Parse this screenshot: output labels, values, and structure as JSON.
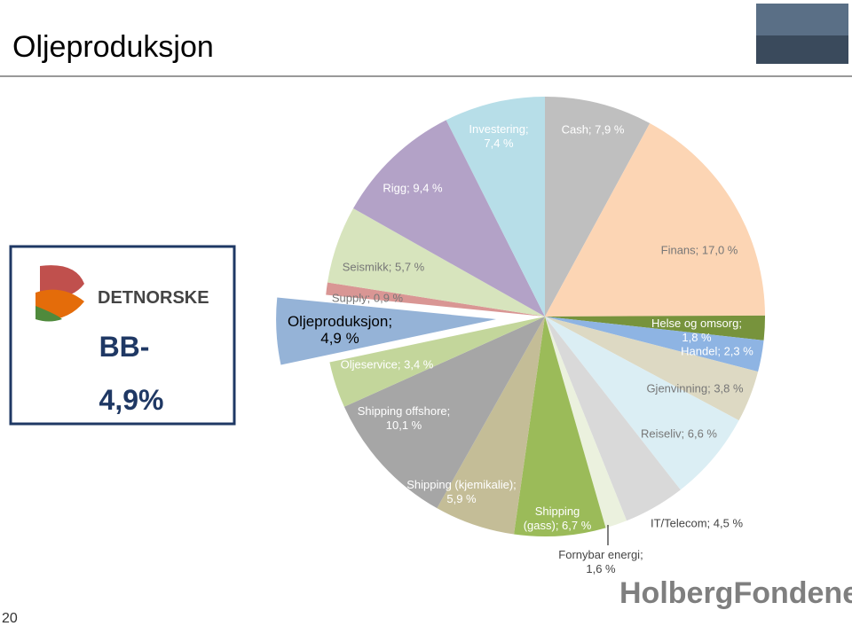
{
  "title": "Oljeproduksjon",
  "badge": {
    "logo_text": "DETNORSKE",
    "rating": "BB-",
    "share": "4,9%"
  },
  "footer_logo": "HolbergFondene",
  "page_number": "20",
  "chart_data": {
    "type": "pie",
    "values": [
      7.9,
      17.0,
      1.8,
      2.3,
      3.8,
      6.6,
      4.5,
      1.6,
      6.7,
      5.9,
      10.1,
      3.4,
      4.9,
      0.9,
      5.7,
      9.4,
      7.4
    ],
    "value_labels": [
      "Cash; 7,9 %",
      "Finans; 17,0 %",
      "Helse og omsorg; 1,8 %",
      "Handel; 2,3 %",
      "Gjenvinning; 3,8 %",
      "Reiseliv; 6,6 %",
      "IT/Telecom; 4,5 %",
      "Fornybar energi; 1,6 %",
      "Shipping (gass); 6,7 %",
      "Shipping (kjemikalie); 5,9 %",
      "Shipping offshore; 10,1 %",
      "Oljeservice; 3,4 %",
      "Oljeproduksjon; 4,9 %",
      "Supply; 0,9 %",
      "Seismikk; 5,7 %",
      "Rigg; 9,4 %",
      "Investering; 7,4 %"
    ],
    "colors": [
      "#bfbfbf",
      "#fcd5b4",
      "#77933c",
      "#8eb4e3",
      "#ddd9c3",
      "#dbeef4",
      "#d9d9d9",
      "#ebf1de",
      "#9bbb59",
      "#c4bd97",
      "#a6a6a6",
      "#c3d69b",
      "#95b3d7",
      "#d99694",
      "#d7e4bd",
      "#b3a2c7",
      "#b7dee8"
    ],
    "exploded": 12
  }
}
